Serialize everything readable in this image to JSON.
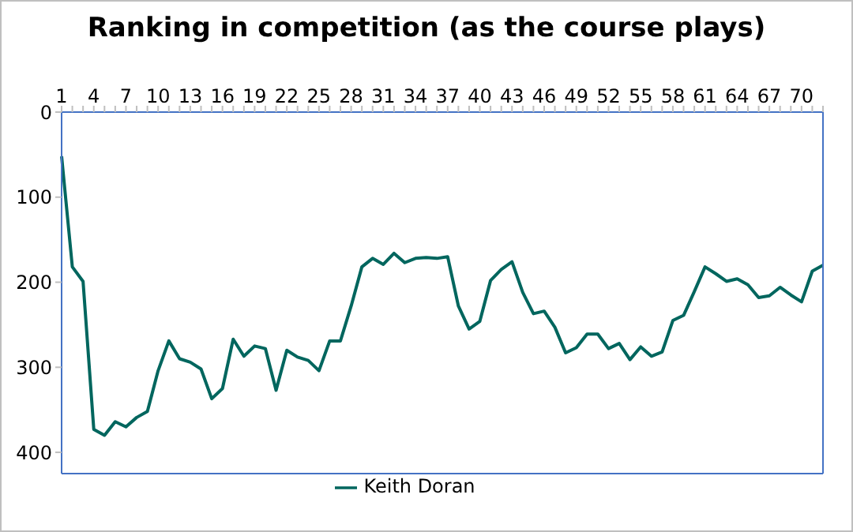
{
  "chart_data": {
    "type": "line",
    "title": "Ranking in competition (as the course plays)",
    "categories": [
      "1",
      null,
      null,
      "4",
      null,
      null,
      "7",
      null,
      null,
      "10",
      null,
      null,
      "13",
      null,
      null,
      "16",
      null,
      null,
      "19",
      null,
      null,
      "22",
      null,
      null,
      "25",
      null,
      null,
      "28",
      null,
      null,
      "31",
      null,
      null,
      "34",
      null,
      null,
      "37",
      null,
      null,
      "40",
      null,
      null,
      "43",
      null,
      null,
      "46",
      null,
      null,
      "49",
      null,
      null,
      "52",
      null,
      null,
      "55",
      null,
      null,
      "58",
      null,
      null,
      "61",
      null,
      null,
      "64",
      null,
      null,
      "67",
      null,
      null,
      "70",
      null,
      null
    ],
    "series": [
      {
        "name": "Keith Doran",
        "color": "#00665e",
        "values": [
          52,
          182,
          199,
          373,
          380,
          364,
          370,
          359,
          352,
          304,
          269,
          290,
          294,
          302,
          337,
          325,
          267,
          287,
          275,
          278,
          327,
          280,
          288,
          292,
          304,
          269,
          269,
          228,
          182,
          172,
          179,
          166,
          177,
          172,
          171,
          172,
          170,
          228,
          255,
          246,
          198,
          185,
          176,
          212,
          237,
          234,
          253,
          283,
          277,
          261,
          261,
          278,
          272,
          291,
          276,
          287,
          282,
          245,
          239,
          211,
          182,
          190,
          199,
          196,
          203,
          218,
          216,
          206,
          215,
          223,
          187,
          180
        ]
      }
    ],
    "ylim": [
      425,
      0
    ],
    "yticks": [
      0,
      100,
      200,
      300,
      400
    ],
    "legend": "bottom",
    "marker": "none",
    "line_style": "solid"
  }
}
